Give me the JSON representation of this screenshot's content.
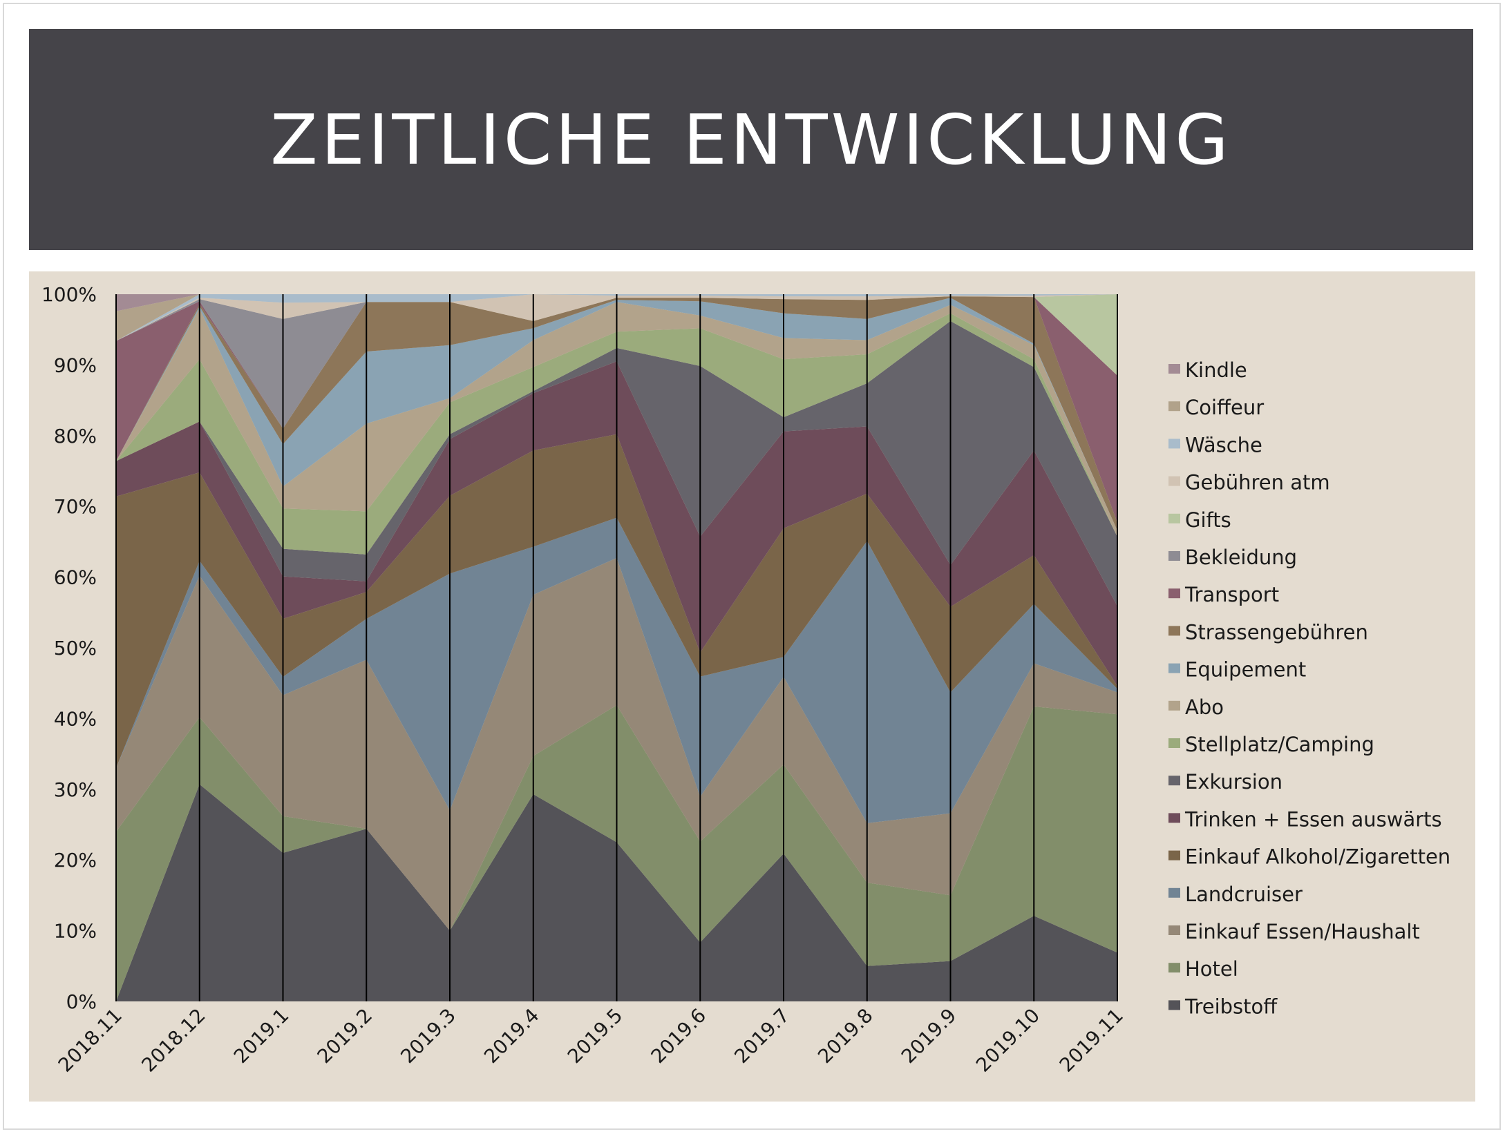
{
  "header": {
    "title": "ZEITLICHE ENTWICKLUNG"
  },
  "chart_data": {
    "type": "area",
    "stacking": "percent",
    "title": "ZEITLICHE ENTWICKLUNG",
    "xlabel": "",
    "ylabel": "",
    "ylim": [
      0,
      100
    ],
    "y_ticks": [
      "0%",
      "10%",
      "20%",
      "30%",
      "40%",
      "50%",
      "60%",
      "70%",
      "80%",
      "90%",
      "100%"
    ],
    "legend_position": "right",
    "categories": [
      "2018.11",
      "2018.12",
      "2019.1",
      "2019.2",
      "2019.3",
      "2019.4",
      "2019.5",
      "2019.6",
      "2019.7",
      "2019.8",
      "2019.9",
      "2019.10",
      "2019.11"
    ],
    "series": [
      {
        "name": "Treibstoff",
        "color": "#545358",
        "values": [
          0,
          30.7,
          21,
          24.4,
          10,
          29.3,
          22.5,
          8.3,
          20.9,
          5,
          5.7,
          12.1,
          6.9
        ]
      },
      {
        "name": "Hotel",
        "color": "#828e6a",
        "values": [
          24,
          9.5,
          5.2,
          0,
          0,
          5.4,
          19.4,
          14.2,
          12.6,
          11.8,
          9.3,
          29.6,
          33.7
        ]
      },
      {
        "name": "Einkauf Essen/Haushalt",
        "color": "#958877",
        "values": [
          9,
          20,
          17.1,
          23.9,
          17,
          22.8,
          20.8,
          6.3,
          12.4,
          8.4,
          11.6,
          6.1,
          3.1
        ]
      },
      {
        "name": "Landcruiser",
        "color": "#718494",
        "values": [
          0,
          2.1,
          2.6,
          5.8,
          33.5,
          6.8,
          5.7,
          16.9,
          2.8,
          39.9,
          17.1,
          8.4,
          0.5
        ]
      },
      {
        "name": "Einkauf Alkohol/Zigaretten",
        "color": "#7a6549",
        "values": [
          38.4,
          12.5,
          8.2,
          3.8,
          11,
          13.6,
          11.8,
          3.4,
          18.2,
          6.7,
          12.1,
          6.9,
          0.4
        ]
      },
      {
        "name": "Trinken + Essen auswärts",
        "color": "#6e4c5a",
        "values": [
          5,
          7.2,
          6,
          1.5,
          8,
          8.1,
          10.3,
          16.3,
          13.7,
          9.5,
          5.9,
          14.8,
          11.3
        ]
      },
      {
        "name": "Exkursion",
        "color": "#66646b",
        "values": [
          0,
          0,
          3.9,
          3.8,
          0.7,
          0.3,
          1.9,
          24,
          2,
          6.1,
          34.5,
          11.8,
          9.8
        ]
      },
      {
        "name": "Stellplatz/Camping",
        "color": "#9bab7c",
        "values": [
          0,
          8.8,
          5.7,
          6.1,
          4.5,
          3.4,
          2.3,
          5.3,
          8.2,
          4.1,
          1.1,
          1.1,
          0
        ]
      },
      {
        "name": "Abo",
        "color": "#b2a38b",
        "values": [
          0,
          7.2,
          3.1,
          12.4,
          0.6,
          3.8,
          4.2,
          1.8,
          3,
          2,
          1.2,
          2,
          0.9
        ]
      },
      {
        "name": "Equipement",
        "color": "#8aa3b3",
        "values": [
          0,
          0.3,
          6,
          10.2,
          7.5,
          1.7,
          0.3,
          2,
          3.5,
          3,
          1,
          0.2,
          0
        ]
      },
      {
        "name": "Strassengebühren",
        "color": "#8d7659",
        "values": [
          0,
          0.3,
          2.2,
          7,
          6.1,
          1,
          0.3,
          0.5,
          2,
          2.7,
          0.2,
          6.6,
          1.1
        ]
      },
      {
        "name": "Transport",
        "color": "#8a5f6e",
        "values": [
          17,
          0.4,
          0,
          0,
          0,
          0,
          0,
          0,
          0,
          0,
          0,
          0,
          20.8
        ]
      },
      {
        "name": "Bekleidung",
        "color": "#8e8c93",
        "values": [
          0,
          0.3,
          15.5,
          0,
          0,
          0,
          0,
          0,
          0,
          0,
          0,
          0,
          0
        ]
      },
      {
        "name": "Gifts",
        "color": "#b8c6a0",
        "values": [
          0,
          0,
          0,
          0,
          0,
          0,
          0,
          0,
          0,
          0,
          0,
          0,
          11.5
        ]
      },
      {
        "name": "Gebühren atm",
        "color": "#d1c3b3",
        "values": [
          0,
          0.2,
          2.3,
          0,
          0,
          3.8,
          0.3,
          0.3,
          0.4,
          0.5,
          0.1,
          0.2,
          0
        ]
      },
      {
        "name": "Wäsche",
        "color": "#a9bccb",
        "values": [
          0,
          0.5,
          1.2,
          1.1,
          1.1,
          0,
          0.2,
          0.2,
          0.3,
          0.3,
          0.2,
          0.2,
          0
        ]
      },
      {
        "name": "Coiffeur",
        "color": "#b1a28a",
        "values": [
          4.2,
          0,
          0,
          0,
          0,
          0,
          0,
          0,
          0,
          0,
          0,
          0,
          0
        ]
      },
      {
        "name": "Kindle",
        "color": "#a38b94",
        "values": [
          2.4,
          0,
          0,
          0,
          0,
          0,
          0,
          0,
          0,
          0,
          0,
          0,
          0
        ]
      }
    ]
  }
}
